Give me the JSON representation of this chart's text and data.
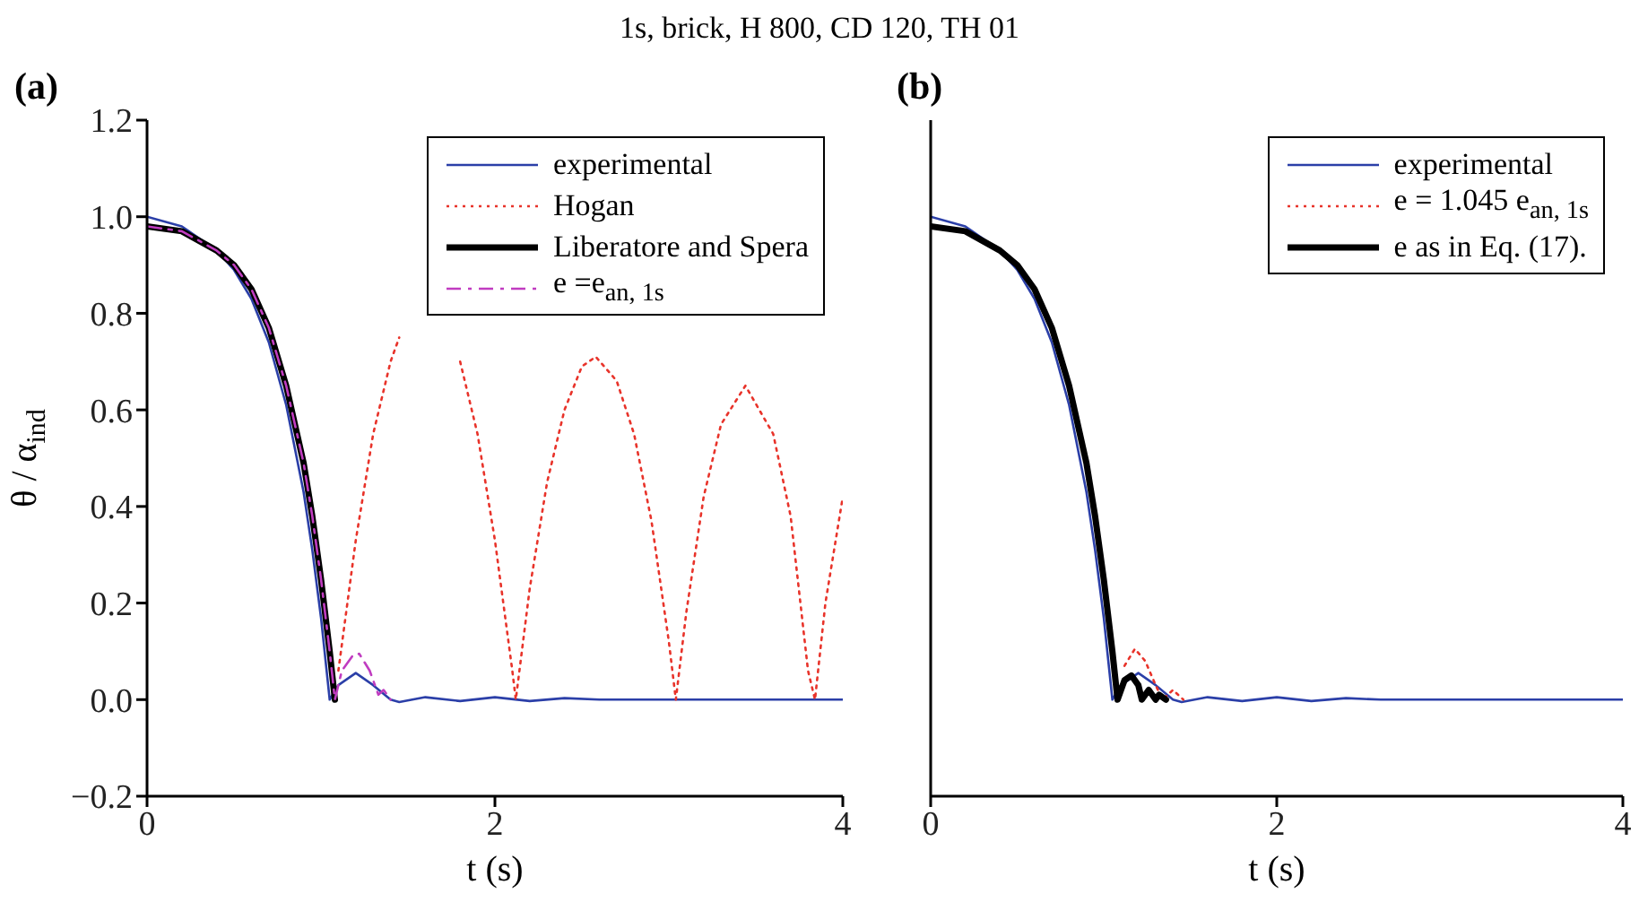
{
  "chart_data": [
    {
      "type": "line",
      "title": "(a)",
      "annotations": [
        "1s, brick, H 800, CD 120, TH 01"
      ],
      "xlabel": "t (s)",
      "ylabel": "θ / α$_{ind}$",
      "xlim": [
        0,
        4
      ],
      "xticks": [
        0,
        2,
        4
      ],
      "ylim": [
        -0.2,
        1.2
      ],
      "yticks": [
        {
          "value": -0.2,
          "label": "−0.2"
        },
        {
          "value": 0,
          "label": "0.0"
        },
        {
          "value": 0.2,
          "label": "0.2"
        },
        {
          "value": 0.4,
          "label": "0.4"
        },
        {
          "value": 0.6,
          "label": "0.6"
        },
        {
          "value": 0.8,
          "label": "0.8"
        },
        {
          "value": 1,
          "label": "1.0"
        },
        {
          "value": 1.2,
          "label": "1.2"
        }
      ],
      "grid": false,
      "legend": "top right",
      "marker": "none",
      "series": [
        {
          "name": "experimental",
          "color": "#2b3fa8",
          "line_style": "solid",
          "x": [
            0,
            0.2,
            0.4,
            0.5,
            0.6,
            0.7,
            0.8,
            0.9,
            0.95,
            1.0,
            1.05,
            1.1,
            1.2,
            1.3,
            1.4,
            1.45,
            1.6,
            1.8,
            2.0,
            2.2,
            2.4,
            2.6,
            3,
            4
          ],
          "values": [
            1.0,
            0.98,
            0.93,
            0.89,
            0.83,
            0.74,
            0.61,
            0.43,
            0.31,
            0.17,
            0.0,
            0.03,
            0.055,
            0.03,
            0.0,
            -0.005,
            0.005,
            -0.003,
            0.005,
            -0.003,
            0.003,
            0,
            0,
            0
          ]
        },
        {
          "name": "Hogan",
          "color": "#e8332a",
          "line_style": "dotted",
          "x": [
            1.1,
            1.2,
            1.3,
            1.4,
            1.45,
            1.6,
            1.75,
            1.8,
            1.9,
            2.0,
            2.1,
            2.12,
            2.2,
            2.3,
            2.4,
            2.5,
            2.58,
            2.7,
            2.8,
            2.9,
            3.0,
            3.04,
            3.1,
            3.2,
            3.3,
            3.44,
            3.6,
            3.7,
            3.8,
            3.84,
            3.9,
            4.0
          ],
          "values": [
            0.06,
            0.33,
            0.55,
            0.7,
            0.75,
            null,
            null,
            0.7,
            0.55,
            0.33,
            0.06,
            0,
            0.23,
            0.45,
            0.6,
            0.69,
            0.71,
            0.66,
            0.55,
            0.37,
            0.12,
            0,
            0.18,
            0.42,
            0.57,
            0.65,
            0.55,
            0.38,
            0.06,
            0,
            0.2,
            0.42
          ]
        },
        {
          "name": "Liberatore and Spera",
          "color": "#000000",
          "line_style": "solid",
          "x": [
            0,
            0.2,
            0.4,
            0.5,
            0.6,
            0.7,
            0.8,
            0.9,
            0.95,
            1.0,
            1.05,
            1.08
          ],
          "values": [
            0.98,
            0.97,
            0.93,
            0.9,
            0.85,
            0.77,
            0.65,
            0.49,
            0.38,
            0.25,
            0.1,
            0.0
          ]
        },
        {
          "name": "e =e$_{an, 1s}$",
          "color": "#c03cc0",
          "line_style": "dashed",
          "x": [
            0,
            0.2,
            0.4,
            0.5,
            0.6,
            0.7,
            0.8,
            0.9,
            0.95,
            1.0,
            1.05,
            1.08,
            1.12,
            1.18,
            1.22,
            1.28,
            1.33,
            1.36,
            1.4
          ],
          "values": [
            0.98,
            0.97,
            0.93,
            0.9,
            0.85,
            0.77,
            0.65,
            0.49,
            0.38,
            0.25,
            0.1,
            0.0,
            0.06,
            0.09,
            0.095,
            0.06,
            0.01,
            0.02,
            0.0
          ]
        }
      ]
    },
    {
      "type": "line",
      "title": "(b)",
      "xlabel": "t (s)",
      "xlim": [
        0,
        4
      ],
      "xticks": [
        0,
        2,
        4
      ],
      "ylim": [
        -0.2,
        1.2
      ],
      "yticks": [
        {
          "value": -0.2,
          "label": null
        },
        {
          "value": 0,
          "label": null
        },
        {
          "value": 0.2,
          "label": null
        },
        {
          "value": 0.4,
          "label": null
        },
        {
          "value": 0.6,
          "label": null
        },
        {
          "value": 0.8,
          "label": null
        },
        {
          "value": 1,
          "label": null
        },
        {
          "value": 1.2,
          "label": null
        }
      ],
      "tick_labels": "x",
      "grid": false,
      "legend": "top right",
      "marker": "none",
      "series": [
        {
          "name": "experimental",
          "color": "#2b3fa8",
          "line_style": "solid",
          "x": [
            0,
            0.2,
            0.4,
            0.5,
            0.6,
            0.7,
            0.8,
            0.9,
            0.95,
            1.0,
            1.05,
            1.1,
            1.2,
            1.3,
            1.4,
            1.45,
            1.6,
            1.8,
            2.0,
            2.2,
            2.4,
            2.6,
            3,
            4
          ],
          "values": [
            1.0,
            0.98,
            0.93,
            0.89,
            0.83,
            0.74,
            0.61,
            0.43,
            0.31,
            0.17,
            0.0,
            0.03,
            0.055,
            0.03,
            0.0,
            -0.005,
            0.005,
            -0.003,
            0.005,
            -0.003,
            0.003,
            0,
            0,
            0
          ]
        },
        {
          "name": "e = 1.045 e$_{an, 1s}$",
          "color": "#e8332a",
          "line_style": "dotted",
          "x": [
            1.12,
            1.18,
            1.24,
            1.3,
            1.34,
            1.4,
            1.46
          ],
          "values": [
            0.07,
            0.105,
            0.08,
            0.03,
            0.0,
            0.02,
            0
          ]
        },
        {
          "name": "e as in Eq. (17).",
          "color": "#000000",
          "line_style": "solid",
          "x": [
            0,
            0.2,
            0.4,
            0.5,
            0.6,
            0.7,
            0.8,
            0.9,
            0.95,
            1.0,
            1.05,
            1.08,
            1.12,
            1.16,
            1.2,
            1.22,
            1.26,
            1.3,
            1.32,
            1.36
          ],
          "values": [
            0.98,
            0.97,
            0.93,
            0.9,
            0.85,
            0.77,
            0.65,
            0.49,
            0.38,
            0.25,
            0.1,
            0.0,
            0.04,
            0.05,
            0.03,
            0.0,
            0.02,
            0.0,
            0.01,
            0
          ]
        }
      ]
    }
  ]
}
